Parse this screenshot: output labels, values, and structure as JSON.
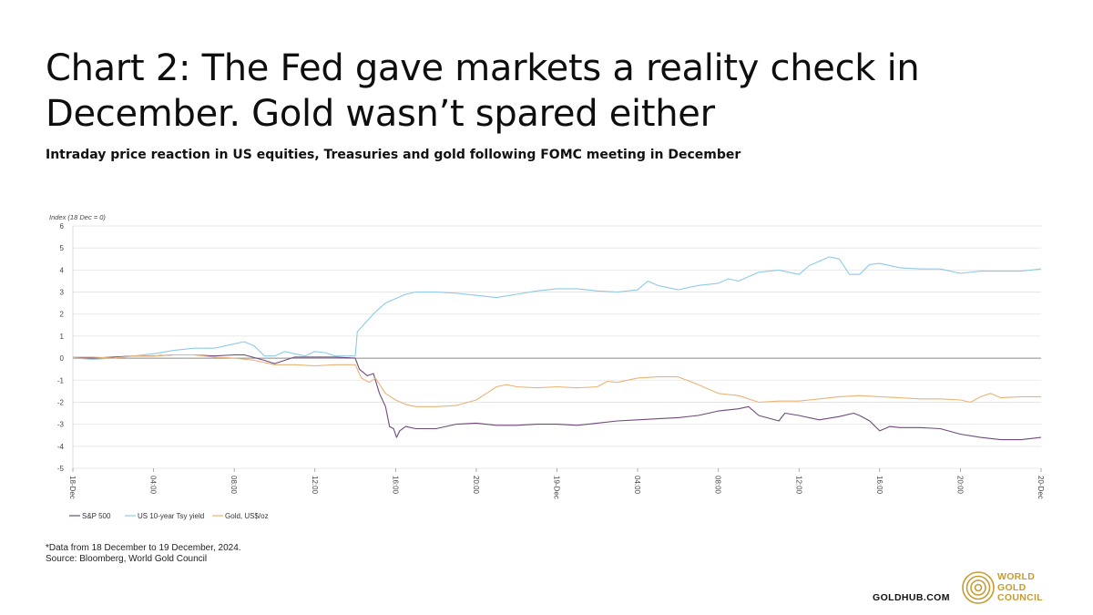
{
  "header": {
    "title": "Chart 2: The Fed gave markets a reality check in December. Gold wasn’t spared either",
    "subtitle": "Intraday price reaction in US equities, Treasuries and gold following FOMC meeting in December"
  },
  "chart_data": {
    "type": "line",
    "ylabel": "Index (18 Dec = 0)",
    "ylim": [
      -5,
      6
    ],
    "yticks": [
      6,
      5,
      4,
      3,
      2,
      1,
      0,
      -1,
      -2,
      -3,
      -4,
      -5
    ],
    "xlim_hours": [
      0,
      48
    ],
    "xticks": [
      {
        "h": 0,
        "label": "18-Dec"
      },
      {
        "h": 4,
        "label": "04:00"
      },
      {
        "h": 8,
        "label": "08:00"
      },
      {
        "h": 12,
        "label": "12:00"
      },
      {
        "h": 16,
        "label": "16:00"
      },
      {
        "h": 20,
        "label": "20:00"
      },
      {
        "h": 24,
        "label": "19-Dec"
      },
      {
        "h": 28,
        "label": "04:00"
      },
      {
        "h": 32,
        "label": "08:00"
      },
      {
        "h": 36,
        "label": "12:00"
      },
      {
        "h": 40,
        "label": "16:00"
      },
      {
        "h": 44,
        "label": "20:00"
      },
      {
        "h": 48,
        "label": "20-Dec"
      }
    ],
    "grid": true,
    "legend_position": "bottom-left",
    "series": [
      {
        "name": "S&P 500",
        "color": "#6e4a7a",
        "points": [
          [
            0,
            0
          ],
          [
            1,
            0
          ],
          [
            2,
            0.05
          ],
          [
            3,
            0.1
          ],
          [
            4,
            0.1
          ],
          [
            5,
            0.15
          ],
          [
            6,
            0.15
          ],
          [
            7,
            0.1
          ],
          [
            8,
            0.15
          ],
          [
            8.5,
            0.15
          ],
          [
            9.5,
            -0.1
          ],
          [
            10,
            -0.25
          ],
          [
            10.5,
            -0.1
          ],
          [
            11,
            0.05
          ],
          [
            12,
            0.05
          ],
          [
            13,
            0.05
          ],
          [
            14,
            0
          ],
          [
            14.2,
            -0.5
          ],
          [
            14.6,
            -0.8
          ],
          [
            14.9,
            -0.7
          ],
          [
            15.2,
            -1.6
          ],
          [
            15.5,
            -2.2
          ],
          [
            15.7,
            -3.1
          ],
          [
            15.9,
            -3.2
          ],
          [
            16.05,
            -3.6
          ],
          [
            16.2,
            -3.3
          ],
          [
            16.5,
            -3.1
          ],
          [
            17,
            -3.2
          ],
          [
            18,
            -3.2
          ],
          [
            19,
            -3.0
          ],
          [
            20,
            -2.95
          ],
          [
            21,
            -3.05
          ],
          [
            22,
            -3.05
          ],
          [
            23,
            -3.0
          ],
          [
            24,
            -3.0
          ],
          [
            25,
            -3.05
          ],
          [
            26,
            -2.95
          ],
          [
            27,
            -2.85
          ],
          [
            28,
            -2.8
          ],
          [
            29,
            -2.75
          ],
          [
            30,
            -2.7
          ],
          [
            31,
            -2.6
          ],
          [
            32,
            -2.4
          ],
          [
            33,
            -2.3
          ],
          [
            33.5,
            -2.2
          ],
          [
            34,
            -2.6
          ],
          [
            35,
            -2.85
          ],
          [
            35.3,
            -2.5
          ],
          [
            36,
            -2.6
          ],
          [
            37,
            -2.8
          ],
          [
            38,
            -2.65
          ],
          [
            38.7,
            -2.5
          ],
          [
            39,
            -2.6
          ],
          [
            39.5,
            -2.85
          ],
          [
            40,
            -3.3
          ],
          [
            40.5,
            -3.1
          ],
          [
            41,
            -3.15
          ],
          [
            42,
            -3.15
          ],
          [
            43,
            -3.2
          ],
          [
            44,
            -3.45
          ],
          [
            45,
            -3.6
          ],
          [
            46,
            -3.7
          ],
          [
            47,
            -3.7
          ],
          [
            48,
            -3.6
          ]
        ]
      },
      {
        "name": "US 10-year Tsy yield",
        "color": "#8ecae6",
        "points": [
          [
            0,
            0
          ],
          [
            1,
            -0.05
          ],
          [
            2,
            0
          ],
          [
            3,
            0.1
          ],
          [
            4,
            0.2
          ],
          [
            5,
            0.35
          ],
          [
            6,
            0.45
          ],
          [
            7,
            0.45
          ],
          [
            8,
            0.65
          ],
          [
            8.5,
            0.75
          ],
          [
            9,
            0.55
          ],
          [
            9.5,
            0.1
          ],
          [
            10,
            0.1
          ],
          [
            10.5,
            0.3
          ],
          [
            11,
            0.2
          ],
          [
            11.5,
            0.1
          ],
          [
            12,
            0.3
          ],
          [
            12.5,
            0.25
          ],
          [
            13,
            0.1
          ],
          [
            14,
            0.1
          ],
          [
            14.1,
            1.2
          ],
          [
            14.5,
            1.6
          ],
          [
            15,
            2.1
          ],
          [
            15.5,
            2.5
          ],
          [
            16,
            2.7
          ],
          [
            16.5,
            2.9
          ],
          [
            17,
            3.0
          ],
          [
            18,
            3.0
          ],
          [
            19,
            2.95
          ],
          [
            20,
            2.85
          ],
          [
            21,
            2.75
          ],
          [
            22,
            2.9
          ],
          [
            23,
            3.05
          ],
          [
            24,
            3.15
          ],
          [
            25,
            3.15
          ],
          [
            26,
            3.05
          ],
          [
            27,
            3.0
          ],
          [
            28,
            3.1
          ],
          [
            28.5,
            3.5
          ],
          [
            29,
            3.3
          ],
          [
            30,
            3.1
          ],
          [
            31,
            3.3
          ],
          [
            32,
            3.4
          ],
          [
            32.5,
            3.6
          ],
          [
            33,
            3.5
          ],
          [
            34,
            3.9
          ],
          [
            35,
            4.0
          ],
          [
            36,
            3.8
          ],
          [
            36.5,
            4.2
          ],
          [
            37,
            4.4
          ],
          [
            37.5,
            4.6
          ],
          [
            38,
            4.5
          ],
          [
            38.5,
            3.8
          ],
          [
            39,
            3.8
          ],
          [
            39.5,
            4.25
          ],
          [
            40,
            4.3
          ],
          [
            41,
            4.1
          ],
          [
            42,
            4.05
          ],
          [
            43,
            4.05
          ],
          [
            44,
            3.85
          ],
          [
            45,
            3.95
          ],
          [
            46,
            3.95
          ],
          [
            47,
            3.95
          ],
          [
            48,
            4.05
          ]
        ]
      },
      {
        "name": "Gold, US$/oz",
        "color": "#e8b478",
        "points": [
          [
            0,
            0.05
          ],
          [
            1,
            0.05
          ],
          [
            2,
            0
          ],
          [
            3,
            0.1
          ],
          [
            4,
            0.1
          ],
          [
            5,
            0.15
          ],
          [
            6,
            0.15
          ],
          [
            7,
            0.05
          ],
          [
            8,
            0
          ],
          [
            9,
            -0.1
          ],
          [
            10,
            -0.3
          ],
          [
            11,
            -0.3
          ],
          [
            12,
            -0.35
          ],
          [
            13,
            -0.3
          ],
          [
            14,
            -0.3
          ],
          [
            14.3,
            -0.9
          ],
          [
            14.7,
            -1.1
          ],
          [
            15,
            -0.9
          ],
          [
            15.5,
            -1.6
          ],
          [
            16,
            -1.9
          ],
          [
            16.5,
            -2.1
          ],
          [
            17,
            -2.2
          ],
          [
            18,
            -2.2
          ],
          [
            19,
            -2.15
          ],
          [
            20,
            -1.9
          ],
          [
            20.5,
            -1.6
          ],
          [
            21,
            -1.3
          ],
          [
            21.5,
            -1.2
          ],
          [
            22,
            -1.3
          ],
          [
            23,
            -1.35
          ],
          [
            24,
            -1.3
          ],
          [
            25,
            -1.35
          ],
          [
            26,
            -1.3
          ],
          [
            26.5,
            -1.05
          ],
          [
            27,
            -1.1
          ],
          [
            28,
            -0.9
          ],
          [
            29,
            -0.85
          ],
          [
            30,
            -0.85
          ],
          [
            31,
            -1.2
          ],
          [
            32,
            -1.6
          ],
          [
            33,
            -1.7
          ],
          [
            34,
            -2.0
          ],
          [
            35,
            -1.95
          ],
          [
            36,
            -1.95
          ],
          [
            37,
            -1.85
          ],
          [
            38,
            -1.75
          ],
          [
            39,
            -1.7
          ],
          [
            40,
            -1.75
          ],
          [
            41,
            -1.8
          ],
          [
            42,
            -1.85
          ],
          [
            43,
            -1.85
          ],
          [
            44,
            -1.9
          ],
          [
            44.5,
            -2.0
          ],
          [
            45,
            -1.75
          ],
          [
            45.5,
            -1.6
          ],
          [
            46,
            -1.8
          ],
          [
            47,
            -1.75
          ],
          [
            48,
            -1.75
          ]
        ]
      }
    ]
  },
  "footnote": {
    "line1": "*Data from 18 December to 19 December, 2024.",
    "line2": "Source: Bloomberg, World Gold Council"
  },
  "branding": {
    "site": "GOLDHUB.COM",
    "org_line1": "WORLD",
    "org_line2": "GOLD",
    "org_line3": "COUNCIL",
    "brand_color": "#c79b33"
  }
}
